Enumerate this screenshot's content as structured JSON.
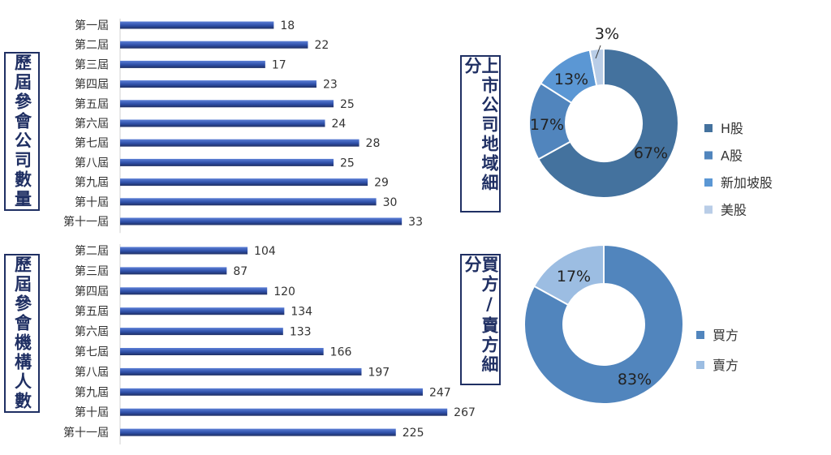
{
  "colors": {
    "bar": "#2e4fa8",
    "bar_highlight": "#5c7fd6",
    "box_border": "#1f2f63",
    "slice_h": "#44729e",
    "slice_a": "#5185bd",
    "slice_sg": "#5b97d4",
    "slice_us": "#b9cde7",
    "slice_buy": "#5185bd",
    "slice_sell": "#9cbde2"
  },
  "chart_data": [
    {
      "type": "bar",
      "orientation": "horizontal",
      "title": "歷屆參會公司數量",
      "categories": [
        "第一屆",
        "第二屆",
        "第三屆",
        "第四屆",
        "第五屆",
        "第六屆",
        "第七屆",
        "第八屆",
        "第九屆",
        "第十屆",
        "第十一屆"
      ],
      "values": [
        18,
        22,
        17,
        23,
        25,
        24,
        28,
        25,
        29,
        30,
        33
      ],
      "xlim": [
        0,
        45
      ]
    },
    {
      "type": "bar",
      "orientation": "horizontal",
      "title": "歷屆參會機構人數",
      "categories": [
        "第二屆",
        "第三屆",
        "第四屆",
        "第五屆",
        "第六屆",
        "第七屆",
        "第八屆",
        "第九屆",
        "第十屆",
        "第十一屆"
      ],
      "values": [
        104,
        87,
        120,
        134,
        133,
        166,
        197,
        247,
        267,
        225
      ],
      "xlim": [
        0,
        350
      ]
    },
    {
      "type": "pie",
      "donut": true,
      "title": "上市公司地域細分",
      "labels": [
        "H股",
        "A股",
        "新加坡股",
        "美股"
      ],
      "values": [
        67,
        17,
        13,
        3
      ],
      "value_labels": [
        "67%",
        "17%",
        "13%",
        "3%"
      ]
    },
    {
      "type": "pie",
      "donut": true,
      "title": "買方/賣方細分",
      "labels": [
        "買方",
        "賣方"
      ],
      "values": [
        83,
        17
      ],
      "value_labels": [
        "83%",
        "17%"
      ]
    }
  ]
}
